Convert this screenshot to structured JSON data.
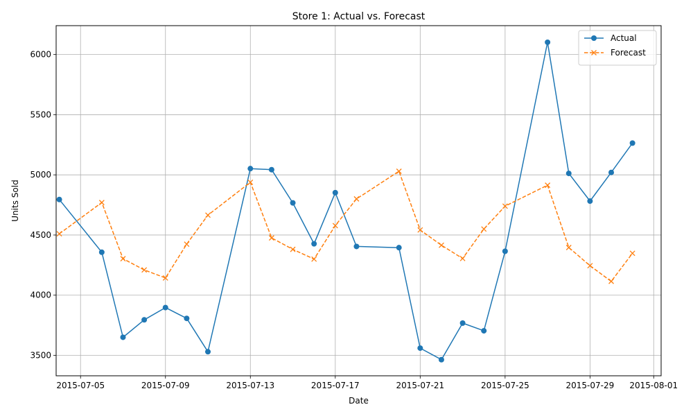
{
  "chart_data": {
    "type": "line",
    "title": "Store 1: Actual vs. Forecast",
    "xlabel": "Date",
    "ylabel": "Units Sold",
    "xlim": [
      "2015-07-03",
      "2015-08-01"
    ],
    "ylim": [
      3330,
      6240
    ],
    "x_ticks": [
      "2015-07-05",
      "2015-07-09",
      "2015-07-13",
      "2015-07-17",
      "2015-07-21",
      "2015-07-25",
      "2015-07-29",
      "2015-08-01"
    ],
    "y_ticks": [
      3500,
      4000,
      4500,
      5000,
      5500,
      6000
    ],
    "grid": true,
    "legend_position": "top-right",
    "series": [
      {
        "name": "Actual",
        "color": "#1f77b4",
        "line_style": "solid",
        "marker": "circle",
        "points": [
          {
            "date": "2015-07-04",
            "value": 4795
          },
          {
            "date": "2015-07-06",
            "value": 4357
          },
          {
            "date": "2015-07-07",
            "value": 3650
          },
          {
            "date": "2015-07-08",
            "value": 3795
          },
          {
            "date": "2015-07-09",
            "value": 3897
          },
          {
            "date": "2015-07-10",
            "value": 3807
          },
          {
            "date": "2015-07-11",
            "value": 3530
          },
          {
            "date": "2015-07-13",
            "value": 5052
          },
          {
            "date": "2015-07-14",
            "value": 5043
          },
          {
            "date": "2015-07-15",
            "value": 4767
          },
          {
            "date": "2015-07-16",
            "value": 4427
          },
          {
            "date": "2015-07-17",
            "value": 4852
          },
          {
            "date": "2015-07-18",
            "value": 4405
          },
          {
            "date": "2015-07-20",
            "value": 4395
          },
          {
            "date": "2015-07-21",
            "value": 3560
          },
          {
            "date": "2015-07-22",
            "value": 3464
          },
          {
            "date": "2015-07-23",
            "value": 3768
          },
          {
            "date": "2015-07-24",
            "value": 3704
          },
          {
            "date": "2015-07-25",
            "value": 4365
          },
          {
            "date": "2015-07-27",
            "value": 6102
          },
          {
            "date": "2015-07-28",
            "value": 5012
          },
          {
            "date": "2015-07-29",
            "value": 4782
          },
          {
            "date": "2015-07-30",
            "value": 5020
          },
          {
            "date": "2015-07-31",
            "value": 5264
          }
        ]
      },
      {
        "name": "Forecast",
        "color": "#ff7f0e",
        "line_style": "dashed",
        "marker": "x",
        "points": [
          {
            "date": "2015-07-04",
            "value": 4510
          },
          {
            "date": "2015-07-06",
            "value": 4770
          },
          {
            "date": "2015-07-07",
            "value": 4303
          },
          {
            "date": "2015-07-08",
            "value": 4210
          },
          {
            "date": "2015-07-09",
            "value": 4143
          },
          {
            "date": "2015-07-10",
            "value": 4424
          },
          {
            "date": "2015-07-11",
            "value": 4665
          },
          {
            "date": "2015-07-13",
            "value": 4938
          },
          {
            "date": "2015-07-14",
            "value": 4476
          },
          {
            "date": "2015-07-15",
            "value": 4381
          },
          {
            "date": "2015-07-16",
            "value": 4300
          },
          {
            "date": "2015-07-17",
            "value": 4578
          },
          {
            "date": "2015-07-18",
            "value": 4800
          },
          {
            "date": "2015-07-20",
            "value": 5030
          },
          {
            "date": "2015-07-21",
            "value": 4542
          },
          {
            "date": "2015-07-22",
            "value": 4415
          },
          {
            "date": "2015-07-23",
            "value": 4305
          },
          {
            "date": "2015-07-24",
            "value": 4550
          },
          {
            "date": "2015-07-25",
            "value": 4740
          },
          {
            "date": "2015-07-27",
            "value": 4914
          },
          {
            "date": "2015-07-28",
            "value": 4396
          },
          {
            "date": "2015-07-29",
            "value": 4245
          },
          {
            "date": "2015-07-30",
            "value": 4115
          },
          {
            "date": "2015-07-31",
            "value": 4348
          }
        ]
      }
    ]
  }
}
